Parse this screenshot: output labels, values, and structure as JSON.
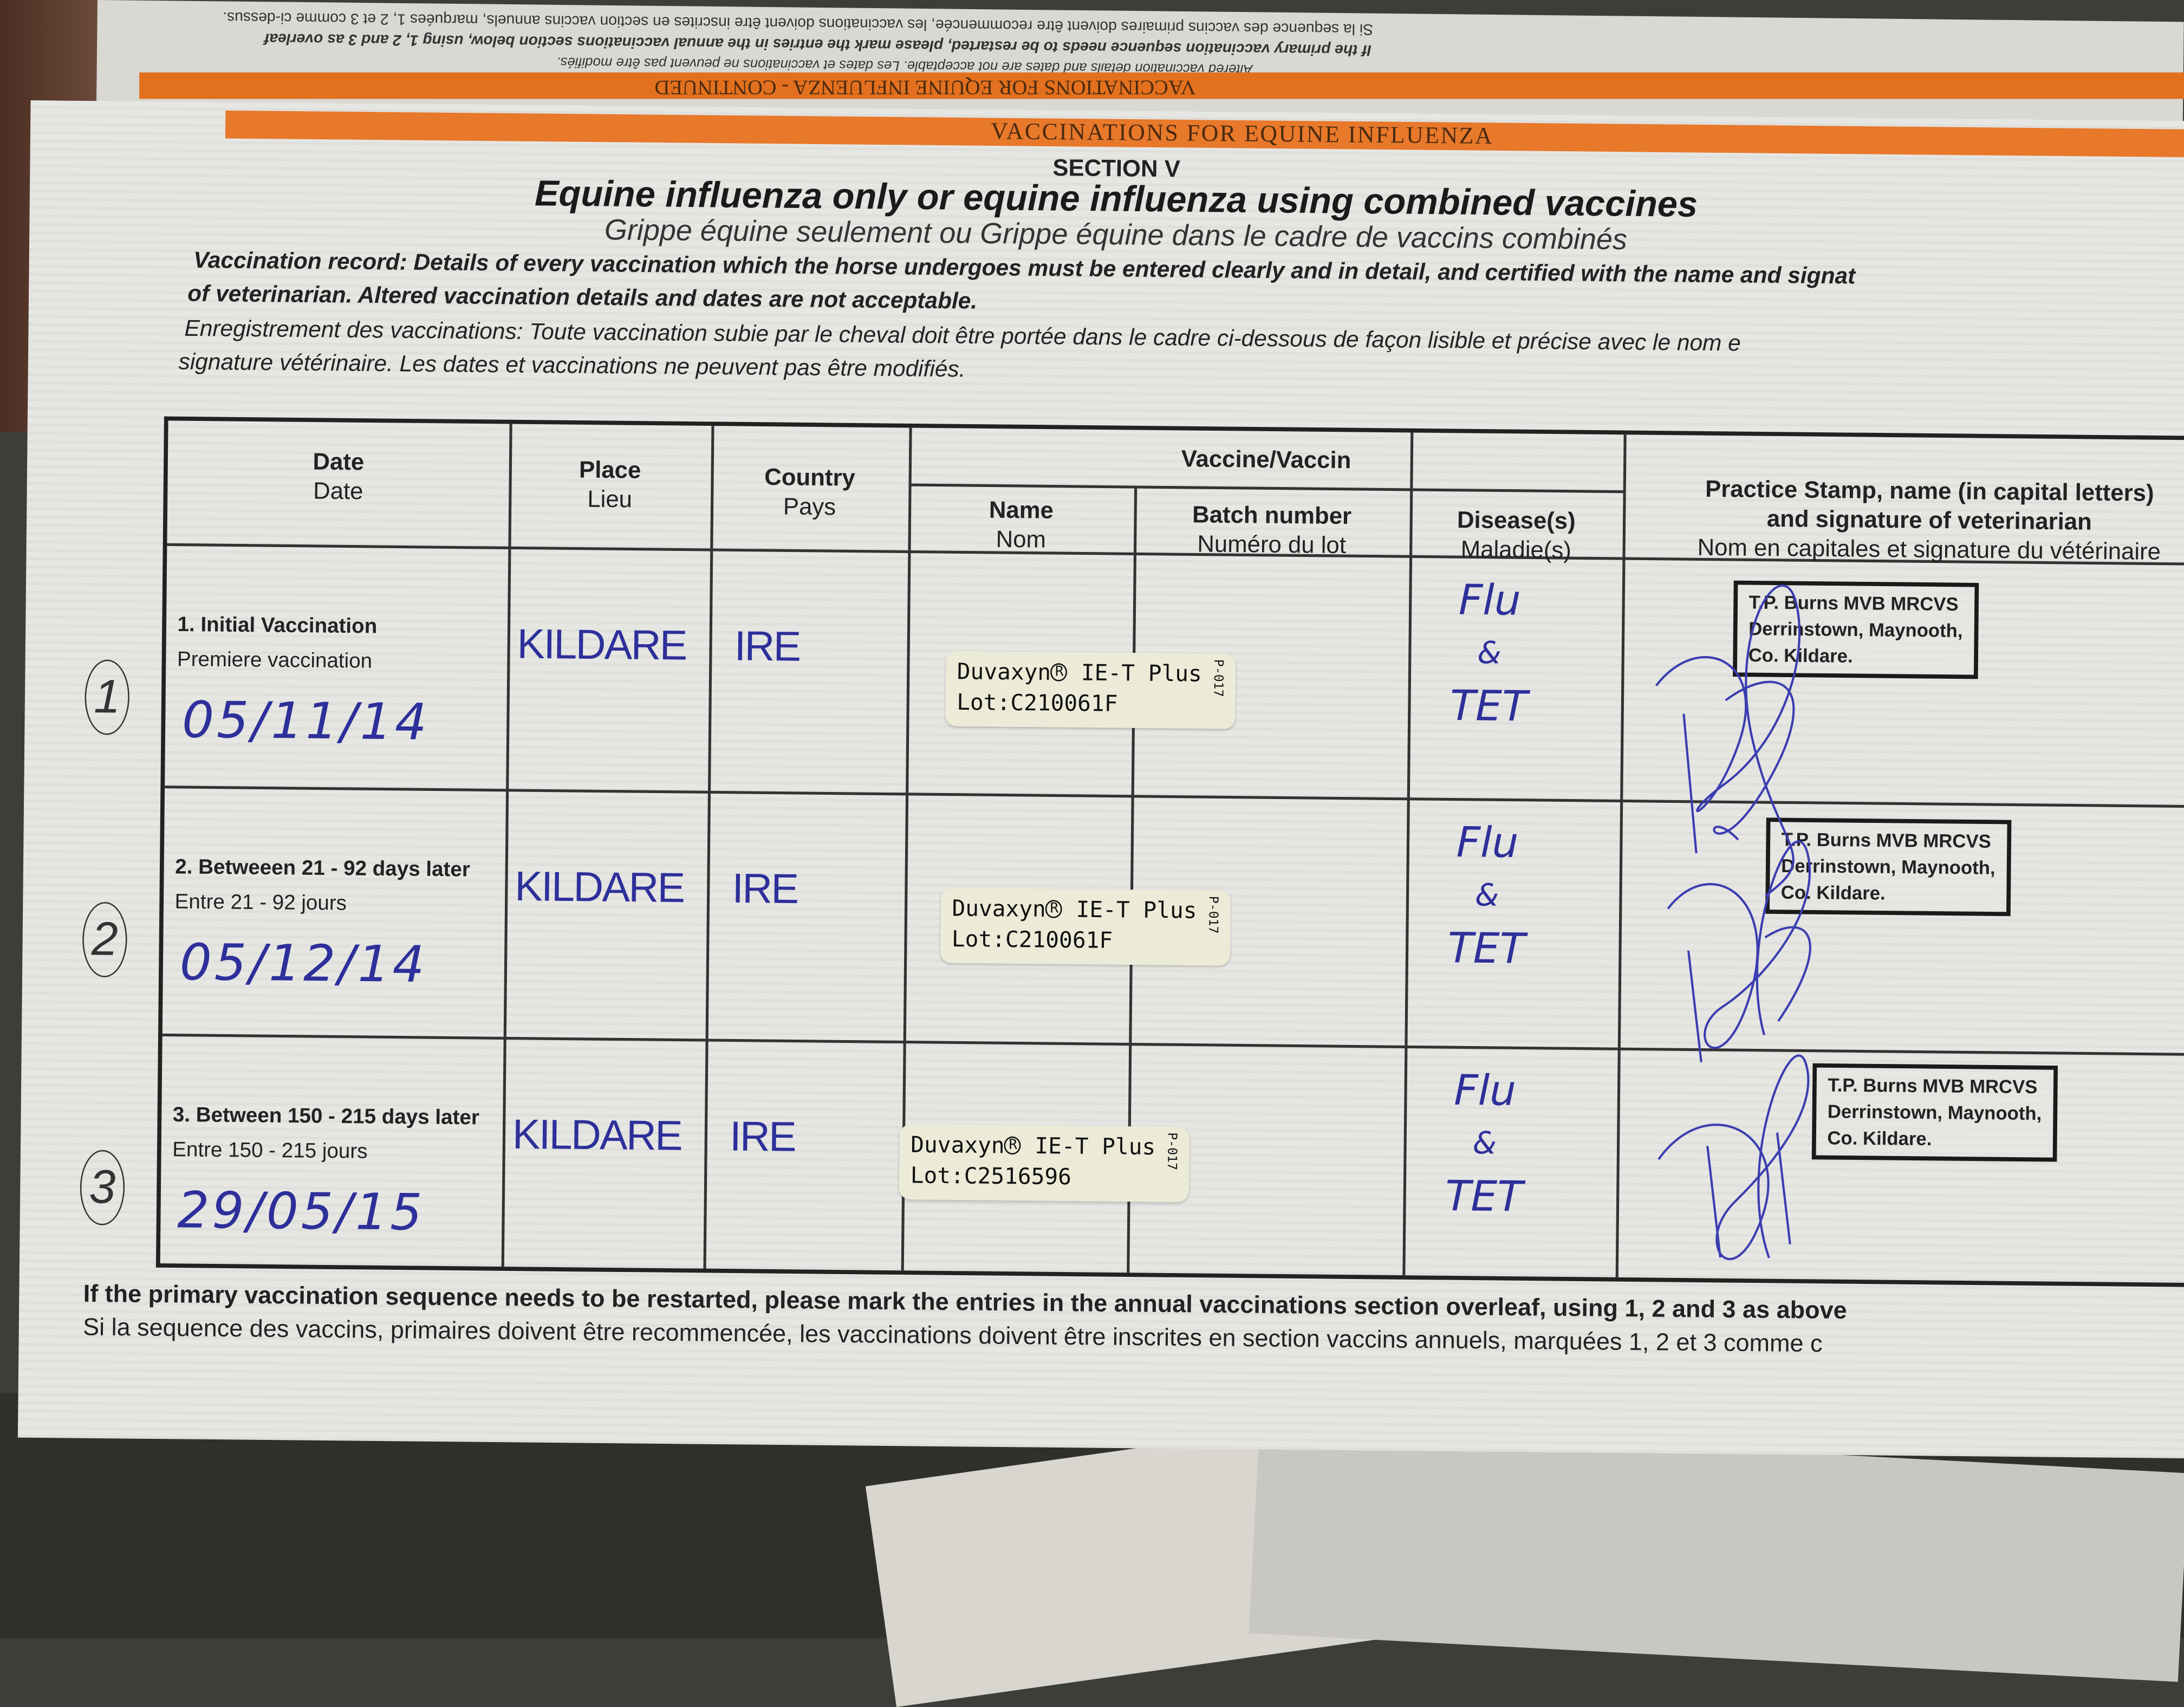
{
  "upper_page": {
    "lines": [
      "Si la sequence des vaccins primaires doivent être recommencée, les vaccinations doivent être inscrites en section vaccins annuels, marquées 1, 2 et 3 comme ci-dessus.",
      "If the primary vaccination sequence needs to be restarted, please mark the entries in the annual vaccinations section below, using 1, 2 and 3 as overleaf",
      "Altered vaccination details and dates are not acceptable. Les dates et vaccinations ne peuvent pas être modifiés."
    ],
    "band": "VACCINATIONS FOR EQUINE INFLUENZA - CONTINUED"
  },
  "page": {
    "band": "VACCINATIONS FOR EQUINE INFLUENZA",
    "section": "SECTION V",
    "title": "Equine influenza only or equine influenza using combined vaccines",
    "subtitle": "Grippe équine seulement ou Grippe équine dans le cadre de vaccins combinés",
    "para_en_1": "Vaccination record: Details of every vaccination which the horse undergoes must be entered clearly and in detail, and certified with the name and signat",
    "para_en_2": "of veterinarian. Altered vaccination details and dates are not acceptable.",
    "para_fr_1": "Enregistrement des vaccinations: Toute vaccination subie par le cheval doit être portée  dans le cadre ci-dessous de façon lisible et précise avec le nom e",
    "para_fr_2": "signature vétérinaire. Les dates et vaccinations ne peuvent pas être modifiés."
  },
  "table": {
    "headers": {
      "date": {
        "en": "Date",
        "fr": "Date"
      },
      "place": {
        "en": "Place",
        "fr": "Lieu"
      },
      "country": {
        "en": "Country",
        "fr": "Pays"
      },
      "vaccine": "Vaccine/Vaccin",
      "name": {
        "en": "Name",
        "fr": "Nom"
      },
      "batch": {
        "en": "Batch number",
        "fr": "Numéro du lot"
      },
      "disease": {
        "en": "Disease(s)",
        "fr": "Maladie(s)"
      },
      "stamp": {
        "en1": "Practice Stamp, name (in capital letters)",
        "en2": "and signature of veterinarian",
        "fr": "Nom en capitales et signature du vétérinaire"
      }
    },
    "rows": [
      {
        "circled": "1",
        "instr_en": "1. Initial Vaccination",
        "instr_fr": "Premiere vaccination",
        "date": "05/11/14",
        "place": "KILDARE",
        "country": "IRE",
        "label": {
          "name": "Duvaxyn",
          "reg": "R",
          "product": "IE-T Plus",
          "lot": "Lot:C210061F",
          "code": "P-017"
        },
        "disease": [
          "Flu",
          "&",
          "TET"
        ],
        "stamp": [
          "T.P. Burns MVB MRCVS",
          "Derrinstown, Maynooth,",
          "Co. Kildare."
        ]
      },
      {
        "circled": "2",
        "instr_en": "2. Betweeen 21 - 92 days later",
        "instr_fr": "Entre 21 - 92 jours",
        "date": "05/12/14",
        "place": "KILDARE",
        "country": "IRE",
        "label": {
          "name": "Duvaxyn",
          "reg": "R",
          "product": "IE-T Plus",
          "lot": "Lot:C210061F",
          "code": "P-017"
        },
        "disease": [
          "Flu",
          "&",
          "TET"
        ],
        "stamp": [
          "T.P. Burns MVB MRCVS",
          "Derrinstown, Maynooth,",
          "Co. Kildare."
        ]
      },
      {
        "circled": "3",
        "instr_en": "3. Between 150 - 215  days later",
        "instr_fr": "Entre 150 - 215 jours",
        "date": "29/05/15",
        "place": "KILDARE",
        "country": "IRE",
        "label": {
          "name": "Duvaxyn",
          "reg": "R",
          "product": "IE-T Plus",
          "lot": "Lot:C2516596",
          "code": "P-017"
        },
        "disease": [
          "Flu",
          "&",
          "TET"
        ],
        "stamp": [
          "T.P. Burns MVB MRCVS",
          "Derrinstown, Maynooth,",
          "Co. Kildare."
        ]
      }
    ]
  },
  "footer": {
    "en": "If the primary vaccination sequence needs to be restarted, please mark the entries in the annual vaccinations section overleaf, using 1, 2 and 3 as above",
    "fr": "Si la sequence des vaccins, primaires doivent être recommencée, les vaccinations doivent être inscrites en section vaccins annuels, marquées 1, 2 et 3 comme c"
  },
  "colors": {
    "ink": "#2d2f9a",
    "band": "#e8782a",
    "paper": "#e6e6e3"
  }
}
